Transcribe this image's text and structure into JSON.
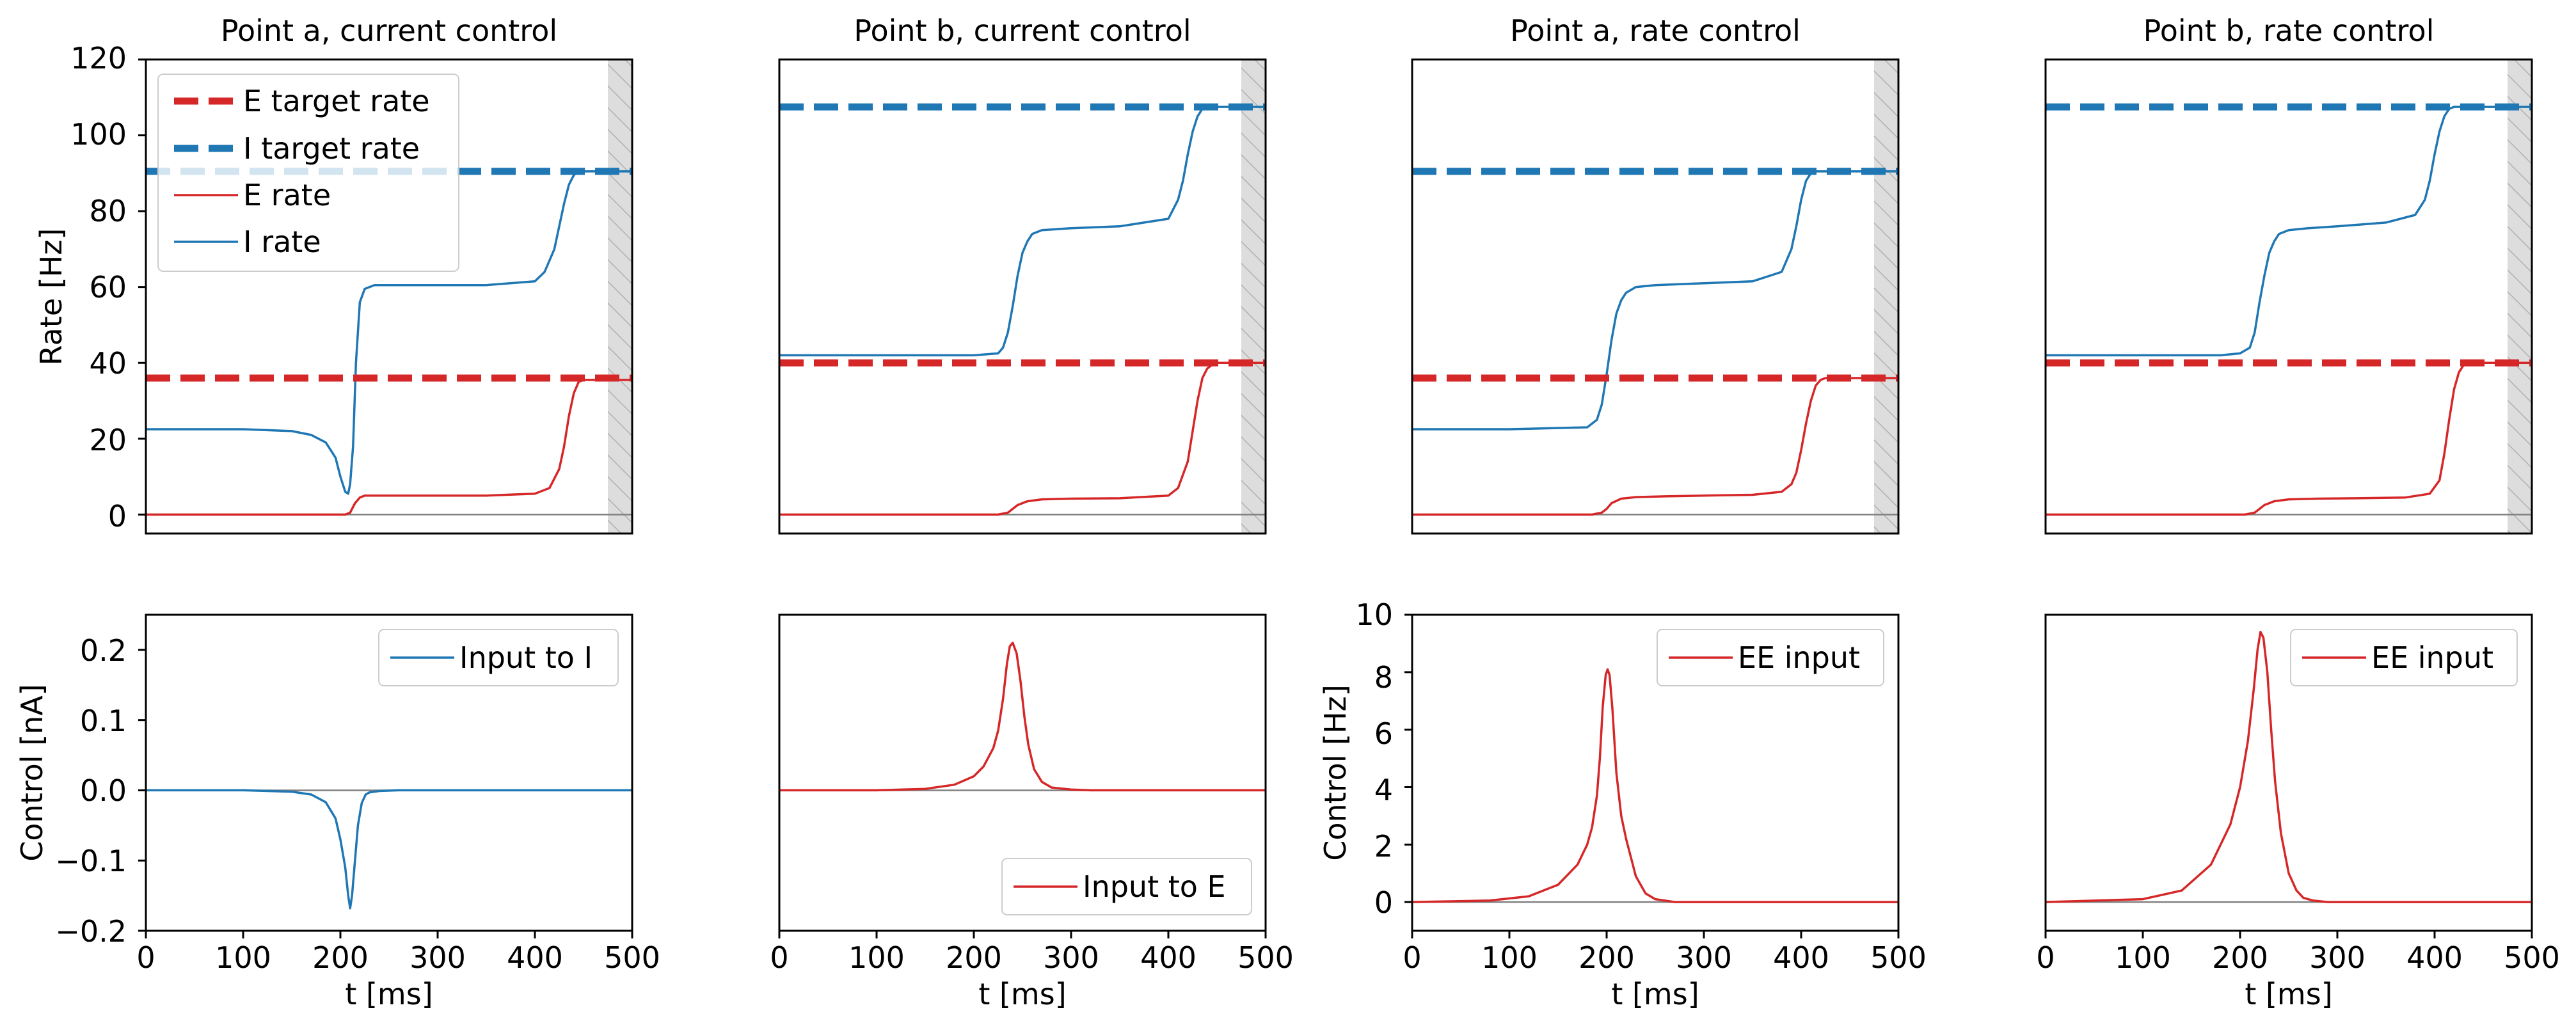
{
  "colors": {
    "e": "#d62728",
    "i": "#1f77b4",
    "zero_line": "#808080",
    "shade": "#dddddd"
  },
  "x_ticks": [
    "0",
    "100",
    "200",
    "300",
    "400",
    "500"
  ],
  "rate_ticks": [
    "0",
    "20",
    "40",
    "60",
    "80",
    "100",
    "120"
  ],
  "current_ticks": [
    "−0.2",
    "−0.1",
    "0.0",
    "0.1",
    "0.2"
  ],
  "rate_control_ticks": [
    "0",
    "2",
    "4",
    "6",
    "8",
    "10"
  ],
  "legend_top": {
    "e_target": "E target rate",
    "i_target": "I target rate",
    "e_rate": "E rate",
    "i_rate": "I rate"
  },
  "chart_data": [
    {
      "type": "line",
      "title": "Point a, current control",
      "xlabel": "",
      "ylabel": "Rate [Hz]",
      "xlim": [
        0,
        500
      ],
      "ylim": [
        -5,
        120
      ],
      "legend_position": "upper left",
      "shaded_region": [
        475,
        500
      ],
      "targets": {
        "E target rate": 36,
        "I target rate": 90.5
      },
      "series": [
        {
          "name": "E rate",
          "x": [
            0,
            205,
            210,
            215,
            220,
            225,
            250,
            300,
            350,
            400,
            415,
            425,
            430,
            435,
            440,
            445,
            450,
            475,
            500
          ],
          "y": [
            0,
            0,
            0.5,
            3,
            4.5,
            5,
            5,
            5,
            5,
            5.5,
            7,
            12,
            18,
            26,
            32,
            35,
            35.5,
            35.5,
            35.5
          ]
        },
        {
          "name": "I rate",
          "x": [
            0,
            100,
            150,
            170,
            185,
            195,
            200,
            205,
            208,
            210,
            213,
            216,
            220,
            225,
            235,
            250,
            300,
            350,
            400,
            410,
            420,
            425,
            430,
            435,
            440,
            445,
            450,
            460,
            475,
            500
          ],
          "y": [
            22.5,
            22.5,
            22,
            21,
            19,
            15,
            10,
            6,
            5.5,
            8,
            18,
            40,
            56,
            59.5,
            60.5,
            60.5,
            60.5,
            60.5,
            61.5,
            64,
            70,
            76,
            82,
            87,
            89.5,
            90.5,
            90.5,
            90.5,
            90.5,
            90.5
          ]
        }
      ]
    },
    {
      "type": "line",
      "title": "Point b, current control",
      "xlabel": "",
      "ylabel": "",
      "xlim": [
        0,
        500
      ],
      "ylim": [
        -5,
        120
      ],
      "shaded_region": [
        475,
        500
      ],
      "targets": {
        "E target rate": 40,
        "I target rate": 107.5
      },
      "series": [
        {
          "name": "E rate",
          "x": [
            0,
            225,
            235,
            240,
            245,
            255,
            270,
            300,
            350,
            400,
            410,
            420,
            425,
            430,
            435,
            440,
            445,
            450,
            475,
            500
          ],
          "y": [
            0,
            0,
            0.5,
            1.5,
            2.5,
            3.5,
            4,
            4.2,
            4.3,
            5,
            7,
            14,
            22,
            30,
            36,
            38.5,
            39.5,
            40,
            40,
            40
          ]
        },
        {
          "name": "I rate",
          "x": [
            0,
            200,
            225,
            230,
            235,
            240,
            245,
            250,
            255,
            260,
            270,
            300,
            350,
            400,
            410,
            415,
            420,
            425,
            430,
            435,
            440,
            450,
            475,
            500
          ],
          "y": [
            42,
            42,
            42.5,
            44,
            48,
            55,
            63,
            69,
            72,
            74,
            75,
            75.5,
            76,
            78,
            83,
            88,
            95,
            101,
            105,
            107,
            107.5,
            107.5,
            107.5,
            107.5
          ]
        }
      ]
    },
    {
      "type": "line",
      "title": "Point a, rate control",
      "xlabel": "",
      "ylabel": "",
      "xlim": [
        0,
        500
      ],
      "ylim": [
        -5,
        120
      ],
      "shaded_region": [
        475,
        500
      ],
      "targets": {
        "E target rate": 36,
        "I target rate": 90.5
      },
      "series": [
        {
          "name": "E rate",
          "x": [
            0,
            185,
            195,
            200,
            205,
            215,
            230,
            260,
            300,
            350,
            380,
            390,
            395,
            400,
            405,
            410,
            415,
            420,
            425,
            475,
            500
          ],
          "y": [
            0,
            0,
            0.5,
            1.5,
            3,
            4.2,
            4.6,
            4.8,
            5,
            5.2,
            6,
            8,
            11,
            17,
            24,
            30,
            34,
            35.5,
            36,
            36,
            36
          ]
        },
        {
          "name": "I rate",
          "x": [
            0,
            100,
            180,
            190,
            195,
            200,
            205,
            210,
            215,
            220,
            230,
            250,
            300,
            350,
            380,
            390,
            395,
            400,
            405,
            410,
            415,
            420,
            475,
            500
          ],
          "y": [
            22.5,
            22.5,
            23,
            25,
            29,
            37,
            46,
            53,
            56.5,
            58.5,
            60,
            60.5,
            61,
            61.5,
            64,
            70,
            76,
            83,
            88,
            90,
            90.5,
            90.5,
            90.5,
            90.5
          ]
        }
      ]
    },
    {
      "type": "line",
      "title": "Point b, rate control",
      "xlabel": "",
      "ylabel": "",
      "xlim": [
        0,
        500
      ],
      "ylim": [
        -5,
        120
      ],
      "shaded_region": [
        475,
        500
      ],
      "targets": {
        "E target rate": 40,
        "I target rate": 107.5
      },
      "series": [
        {
          "name": "E rate",
          "x": [
            0,
            205,
            215,
            220,
            225,
            235,
            250,
            280,
            320,
            370,
            395,
            405,
            410,
            415,
            420,
            425,
            430,
            435,
            475,
            500
          ],
          "y": [
            0,
            0,
            0.5,
            1.5,
            2.5,
            3.5,
            4,
            4.2,
            4.3,
            4.5,
            5.5,
            9,
            16,
            25,
            33,
            37.5,
            39.5,
            40,
            40,
            40
          ]
        },
        {
          "name": "I rate",
          "x": [
            0,
            180,
            200,
            210,
            215,
            220,
            225,
            230,
            235,
            240,
            250,
            270,
            300,
            350,
            380,
            390,
            395,
            400,
            405,
            410,
            415,
            420,
            475,
            500
          ],
          "y": [
            42,
            42,
            42.5,
            44,
            48,
            56,
            63,
            69,
            72,
            74,
            75,
            75.5,
            76,
            77,
            79,
            83,
            88,
            95,
            101,
            105,
            107,
            107.5,
            107.5,
            107.5
          ]
        }
      ]
    },
    {
      "type": "line",
      "title": "",
      "xlabel": "t [ms]",
      "ylabel": "Control [nA]",
      "xlim": [
        0,
        500
      ],
      "ylim": [
        -0.2,
        0.25
      ],
      "legend_position": "upper right",
      "series": [
        {
          "name": "Input to I",
          "x": [
            0,
            100,
            150,
            170,
            185,
            195,
            200,
            205,
            208,
            210,
            212,
            215,
            218,
            222,
            226,
            230,
            240,
            260,
            280,
            500
          ],
          "y": [
            0,
            0,
            -0.002,
            -0.006,
            -0.017,
            -0.04,
            -0.07,
            -0.11,
            -0.15,
            -0.168,
            -0.15,
            -0.1,
            -0.05,
            -0.018,
            -0.006,
            -0.003,
            -0.001,
            0,
            0,
            0
          ]
        }
      ]
    },
    {
      "type": "line",
      "title": "",
      "xlabel": "t [ms]",
      "ylabel": "",
      "xlim": [
        0,
        500
      ],
      "ylim": [
        -0.2,
        0.25
      ],
      "legend_position": "lower right",
      "series": [
        {
          "name": "Input to E",
          "x": [
            0,
            100,
            150,
            180,
            200,
            210,
            220,
            225,
            230,
            234,
            237,
            240,
            244,
            248,
            252,
            256,
            262,
            270,
            280,
            300,
            320,
            500
          ],
          "y": [
            0,
            0,
            0.002,
            0.008,
            0.02,
            0.034,
            0.06,
            0.085,
            0.13,
            0.18,
            0.205,
            0.21,
            0.195,
            0.155,
            0.105,
            0.065,
            0.03,
            0.012,
            0.004,
            0.001,
            0,
            0
          ]
        }
      ]
    },
    {
      "type": "line",
      "title": "",
      "xlabel": "t [ms]",
      "ylabel": "Control [Hz]",
      "xlim": [
        0,
        500
      ],
      "ylim": [
        -1,
        10
      ],
      "legend_position": "upper right",
      "series": [
        {
          "name": "EE input",
          "x": [
            0,
            80,
            120,
            150,
            170,
            180,
            185,
            190,
            193,
            196,
            199,
            201,
            203,
            206,
            210,
            215,
            220,
            230,
            240,
            250,
            260,
            270,
            300,
            500
          ],
          "y": [
            0,
            0.05,
            0.2,
            0.6,
            1.3,
            2.0,
            2.6,
            3.7,
            5.0,
            6.8,
            7.9,
            8.1,
            7.9,
            6.7,
            4.5,
            3.0,
            2.2,
            0.9,
            0.3,
            0.1,
            0.05,
            0,
            0,
            0
          ]
        }
      ]
    },
    {
      "type": "line",
      "title": "",
      "xlabel": "t [ms]",
      "ylabel": "",
      "xlim": [
        0,
        500
      ],
      "ylim": [
        -1,
        10
      ],
      "legend_position": "upper right",
      "series": [
        {
          "name": "EE input",
          "x": [
            0,
            100,
            140,
            170,
            190,
            200,
            208,
            214,
            218,
            221,
            224,
            228,
            232,
            236,
            242,
            250,
            258,
            265,
            275,
            290,
            500
          ],
          "y": [
            0,
            0.1,
            0.4,
            1.3,
            2.7,
            4.0,
            5.6,
            7.4,
            8.8,
            9.4,
            9.2,
            8.0,
            6.0,
            4.2,
            2.4,
            1.0,
            0.4,
            0.15,
            0.05,
            0,
            0
          ]
        }
      ]
    }
  ]
}
